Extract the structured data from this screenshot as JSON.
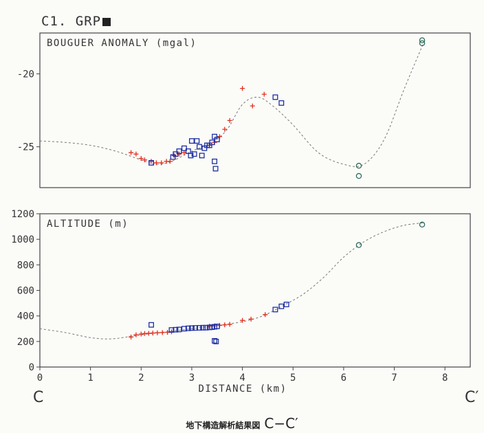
{
  "figure_title": "C1. GRP",
  "caption_main": "地下構造解析結果図",
  "caption_profile": "C−C′",
  "end_left": "C",
  "end_right": "C′",
  "colors": {
    "cross": "#e0301e",
    "square": "#1d2fa0",
    "circle": "#2f6d5e",
    "axis": "#444"
  },
  "chart_data": [
    {
      "type": "scatter",
      "panel_label": "BOUGUER ANOMALY (mgal)",
      "ylim": [
        -27.8,
        -17.2
      ],
      "xlim": [
        0,
        8.5
      ],
      "yticks": [
        "-20",
        "-25"
      ],
      "ytick_values": [
        -20,
        -25
      ],
      "curve": [
        [
          0,
          -24.6
        ],
        [
          0.5,
          -24.7
        ],
        [
          1,
          -24.9
        ],
        [
          1.5,
          -25.3
        ],
        [
          2,
          -25.9
        ],
        [
          2.3,
          -26.2
        ],
        [
          2.6,
          -26.0
        ],
        [
          3,
          -25.3
        ],
        [
          3.4,
          -24.7
        ],
        [
          3.7,
          -23.8
        ],
        [
          4,
          -22.1
        ],
        [
          4.3,
          -21.6
        ],
        [
          4.6,
          -22.2
        ],
        [
          5,
          -23.5
        ],
        [
          5.5,
          -25.4
        ],
        [
          6,
          -26.2
        ],
        [
          6.4,
          -26.2
        ],
        [
          6.8,
          -24.5
        ],
        [
          7.2,
          -21.0
        ],
        [
          7.6,
          -17.7
        ]
      ],
      "crosses": [
        [
          1.8,
          -25.4
        ],
        [
          1.9,
          -25.5
        ],
        [
          2.0,
          -25.8
        ],
        [
          2.07,
          -25.9
        ],
        [
          2.2,
          -26.0
        ],
        [
          2.3,
          -26.1
        ],
        [
          2.4,
          -26.1
        ],
        [
          2.5,
          -26.0
        ],
        [
          2.57,
          -26.0
        ],
        [
          2.65,
          -25.6
        ],
        [
          2.75,
          -25.5
        ],
        [
          2.85,
          -25.4
        ],
        [
          3.35,
          -24.9
        ],
        [
          3.45,
          -24.7
        ],
        [
          3.55,
          -24.3
        ],
        [
          3.65,
          -23.8
        ],
        [
          3.75,
          -23.2
        ],
        [
          4.0,
          -21.0
        ],
        [
          4.2,
          -22.2
        ],
        [
          4.43,
          -21.4
        ]
      ],
      "squares": [
        [
          2.2,
          -26.1
        ],
        [
          2.63,
          -25.7
        ],
        [
          2.68,
          -25.5
        ],
        [
          2.75,
          -25.3
        ],
        [
          2.85,
          -25.1
        ],
        [
          2.93,
          -25.3
        ],
        [
          2.98,
          -25.6
        ],
        [
          3.0,
          -24.6
        ],
        [
          3.05,
          -25.5
        ],
        [
          3.1,
          -24.6
        ],
        [
          3.15,
          -25.0
        ],
        [
          3.2,
          -25.6
        ],
        [
          3.25,
          -25.1
        ],
        [
          3.3,
          -24.9
        ],
        [
          3.35,
          -24.9
        ],
        [
          3.4,
          -24.7
        ],
        [
          3.45,
          -24.3
        ],
        [
          3.5,
          -24.5
        ],
        [
          3.45,
          -26.0
        ],
        [
          3.47,
          -26.5
        ],
        [
          4.65,
          -21.6
        ],
        [
          4.77,
          -22.0
        ]
      ],
      "circles": [
        [
          6.3,
          -26.3
        ],
        [
          6.3,
          -27.0
        ],
        [
          7.55,
          -17.7
        ],
        [
          7.55,
          -17.9
        ]
      ]
    },
    {
      "type": "scatter",
      "panel_label": "ALTITUDE (m)",
      "ylim": [
        0,
        1200
      ],
      "xlim": [
        0,
        8.5
      ],
      "yticks": [
        "1200",
        "1000",
        "800",
        "600",
        "400",
        "200",
        "0"
      ],
      "ytick_values": [
        1200,
        1000,
        800,
        600,
        400,
        200,
        0
      ],
      "xticks": [
        "0",
        "1",
        "2",
        "3",
        "4",
        "5",
        "6",
        "7",
        "8"
      ],
      "xtick_values": [
        0,
        1,
        2,
        3,
        4,
        5,
        6,
        7,
        8
      ],
      "xlabel": "DISTANCE (km)",
      "curve": [
        [
          0,
          300
        ],
        [
          0.5,
          270
        ],
        [
          1,
          230
        ],
        [
          1.4,
          220
        ],
        [
          1.8,
          240
        ],
        [
          2.2,
          262
        ],
        [
          2.6,
          280
        ],
        [
          3,
          300
        ],
        [
          3.5,
          325
        ],
        [
          4,
          355
        ],
        [
          4.4,
          400
        ],
        [
          4.8,
          480
        ],
        [
          5.2,
          570
        ],
        [
          5.6,
          700
        ],
        [
          6,
          860
        ],
        [
          6.4,
          980
        ],
        [
          6.8,
          1060
        ],
        [
          7.2,
          1110
        ],
        [
          7.6,
          1130
        ]
      ],
      "crosses": [
        [
          1.8,
          235
        ],
        [
          1.9,
          252
        ],
        [
          2.0,
          258
        ],
        [
          2.07,
          262
        ],
        [
          2.15,
          264
        ],
        [
          2.23,
          266
        ],
        [
          2.32,
          268
        ],
        [
          2.42,
          270
        ],
        [
          2.52,
          272
        ],
        [
          2.6,
          276
        ],
        [
          3.35,
          320
        ],
        [
          3.45,
          322
        ],
        [
          3.55,
          326
        ],
        [
          3.65,
          330
        ],
        [
          3.75,
          334
        ],
        [
          4.0,
          365
        ],
        [
          4.17,
          375
        ],
        [
          4.45,
          410
        ]
      ],
      "squares": [
        [
          2.2,
          330
        ],
        [
          2.6,
          290
        ],
        [
          2.68,
          292
        ],
        [
          2.75,
          294
        ],
        [
          2.85,
          300
        ],
        [
          2.93,
          303
        ],
        [
          3.0,
          305
        ],
        [
          3.07,
          306
        ],
        [
          3.15,
          307
        ],
        [
          3.22,
          308
        ],
        [
          3.28,
          308
        ],
        [
          3.35,
          310
        ],
        [
          3.4,
          312
        ],
        [
          3.45,
          315
        ],
        [
          3.5,
          318
        ],
        [
          3.45,
          205
        ],
        [
          3.48,
          200
        ],
        [
          4.65,
          450
        ],
        [
          4.77,
          475
        ],
        [
          4.87,
          490
        ]
      ],
      "circles": [
        [
          6.3,
          955
        ],
        [
          7.55,
          1115
        ]
      ]
    }
  ]
}
